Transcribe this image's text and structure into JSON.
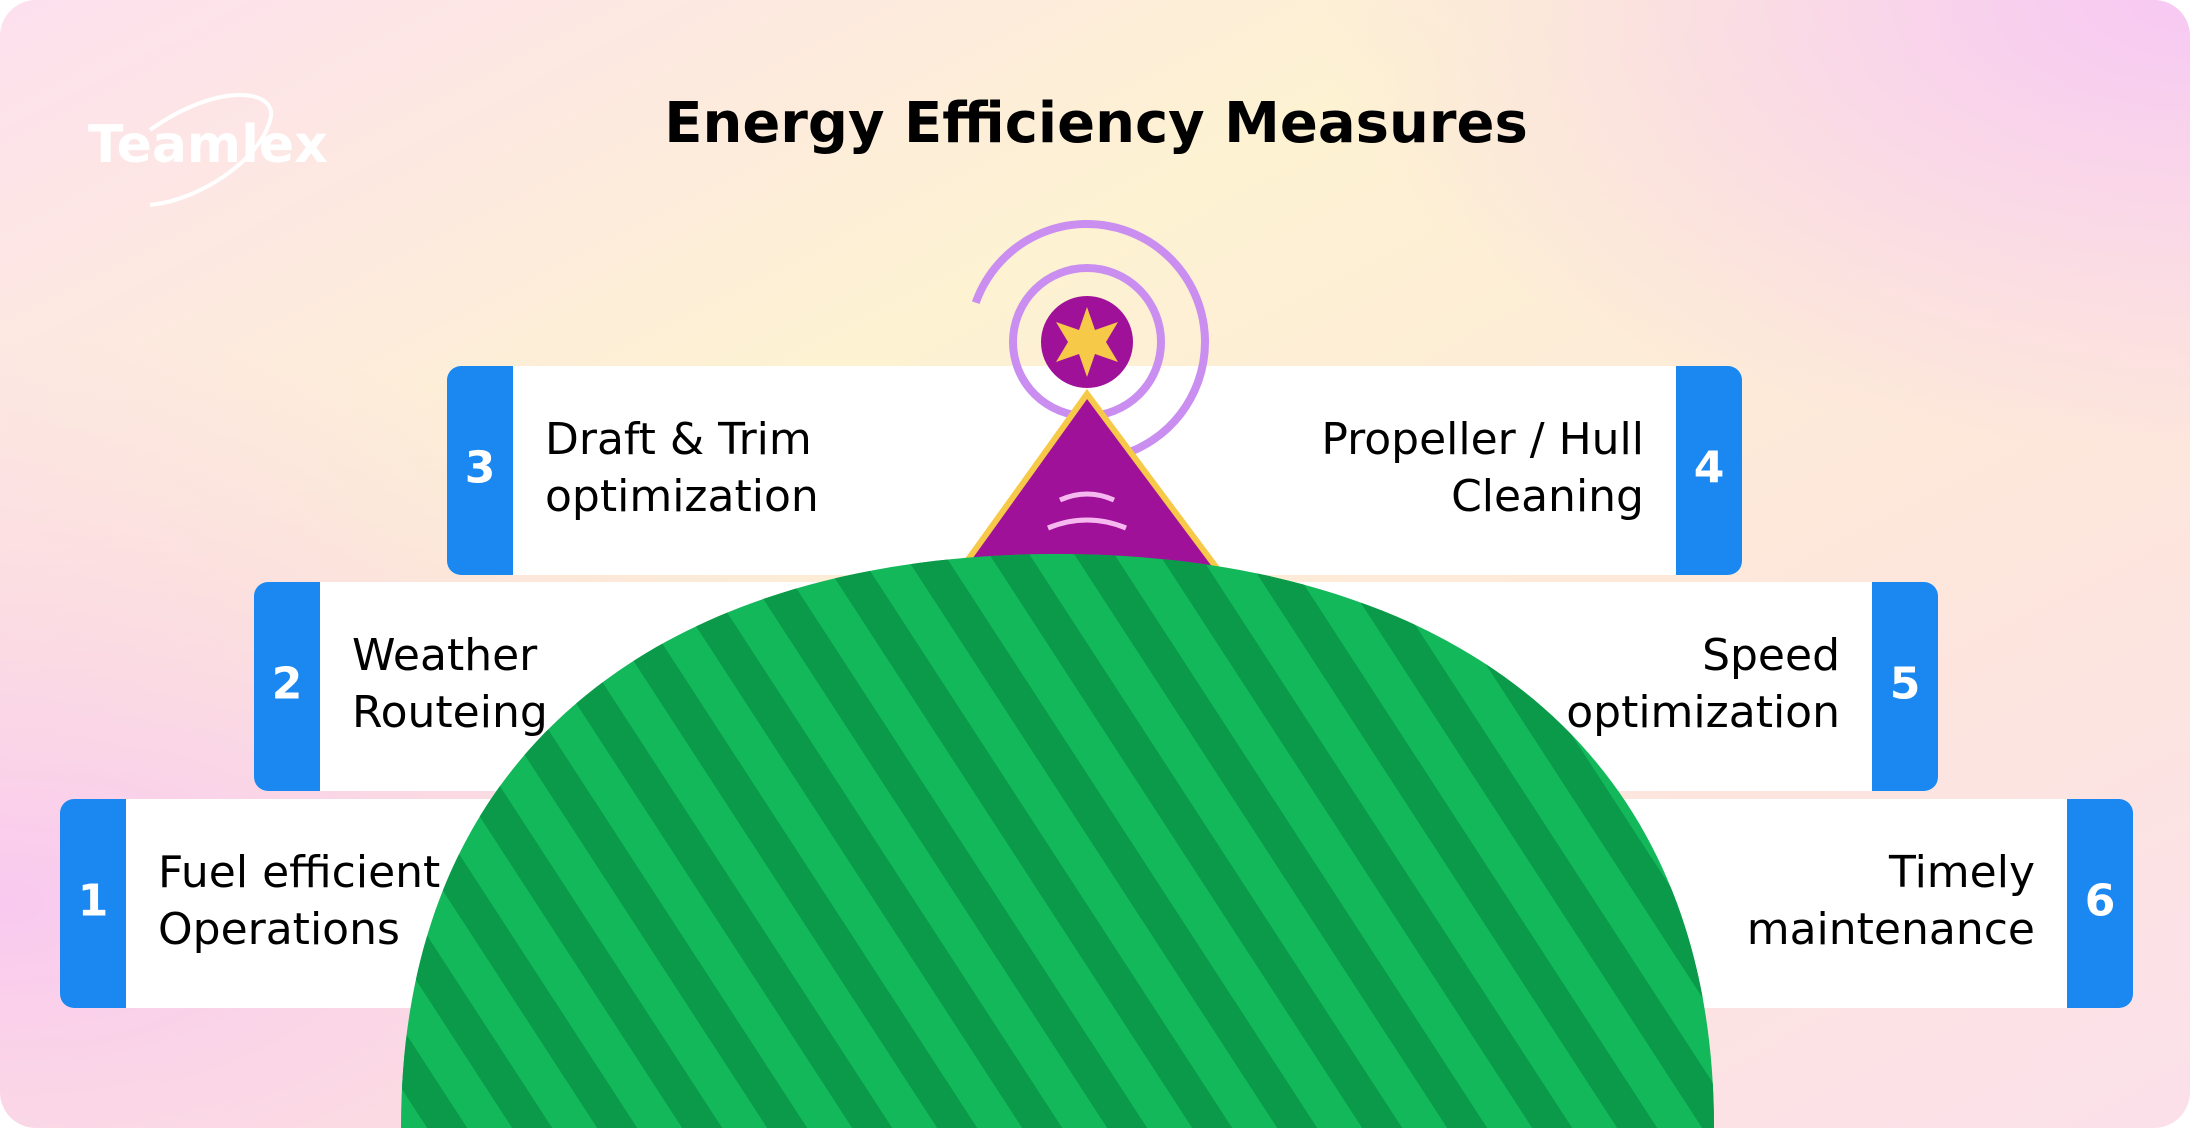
{
  "logo": "Teamlex",
  "title": "Energy Efficiency Measures",
  "items": [
    {
      "number": "1",
      "lines": [
        "Fuel efficient",
        "Operations"
      ]
    },
    {
      "number": "2",
      "lines": [
        "Weather",
        "Routeing"
      ]
    },
    {
      "number": "3",
      "lines": [
        "Draft & Trim",
        "optimization"
      ]
    },
    {
      "number": "4",
      "lines": [
        "Propeller / Hull",
        "Cleaning"
      ]
    },
    {
      "number": "5",
      "lines": [
        "Speed",
        "optimization"
      ]
    },
    {
      "number": "6",
      "lines": [
        "Timely",
        "maintenance"
      ]
    }
  ]
}
